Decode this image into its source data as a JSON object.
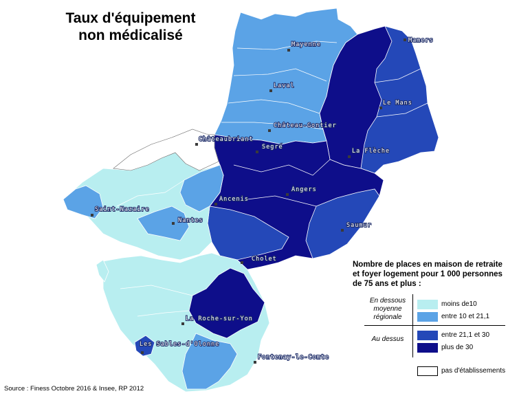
{
  "title": {
    "line1": "Taux d'équipement",
    "line2": "non médicalisé"
  },
  "legend": {
    "title_line1": "Nombre de places en maison de retraite",
    "title_line2": "et foyer logement pour 1 000 personnes",
    "title_line3": "de 75 ans et plus :",
    "group_below": "En dessous moyenne régionale",
    "group_above": "Au dessus",
    "classes": [
      {
        "label": "moins de10",
        "color": "#b8eef0"
      },
      {
        "label": "entre 10 et 21,1",
        "color": "#5ba3e6"
      },
      {
        "label": "entre 21,1 et 30",
        "color": "#2448b8"
      },
      {
        "label": "plus de 30",
        "color": "#0e0e8a"
      }
    ],
    "no_establishment": {
      "label": "pas d'établissements",
      "color": "#ffffff"
    }
  },
  "cities": [
    "Mamers",
    "Mayenne",
    "Laval",
    "Le Mans",
    "Château-Gontier",
    "Châteaubriant",
    "Segré",
    "La Flèche",
    "Angers",
    "Saint-Nazaire",
    "Ancenis",
    "Nantes",
    "Saumur",
    "Cholet",
    "La Roche-sur-Yon",
    "Les Sables-d'Olonne",
    "Fontenay-le-Comte"
  ],
  "source": "Source : Finess Octobre 2016 & Insee, RP 2012"
}
